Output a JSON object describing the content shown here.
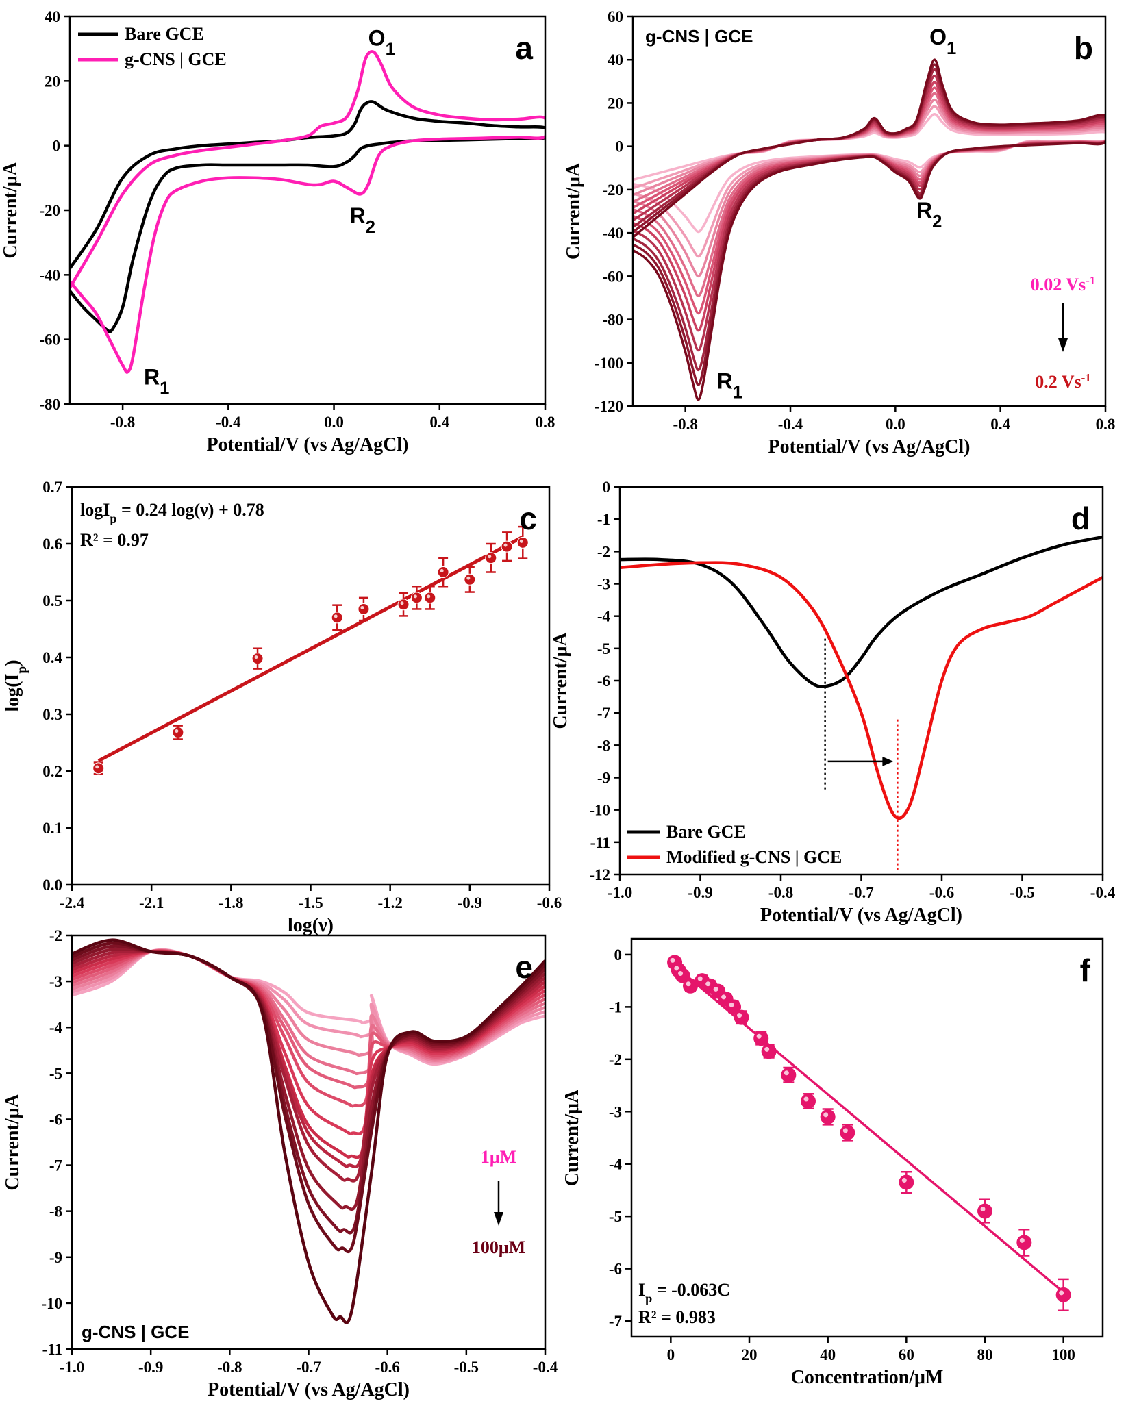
{
  "colors": {
    "black": "#000000",
    "magenta": "#ff1fb4",
    "red": "#ee1111",
    "darkred": "#c8151b",
    "pink": "#e5156b",
    "wine": "#6b0015",
    "lightpink": "#f5a9c4"
  },
  "chart_data": [
    {
      "id": "a",
      "type": "line",
      "letter": "a",
      "xlabel": "Potential/V  (vs Ag/AgCl)",
      "ylabel": "Current/μA",
      "xlim": [
        -1.0,
        0.8
      ],
      "ylim": [
        -80,
        40
      ],
      "xticks": [
        -0.8,
        -0.4,
        0.0,
        0.4,
        0.8
      ],
      "xtick_labels": [
        "-0.8",
        "-0.4",
        "0.0",
        "0.4",
        "0.8"
      ],
      "yticks": [
        -80,
        -60,
        -40,
        -20,
        0,
        20,
        40
      ],
      "ytick_labels": [
        "-80",
        "-60",
        "-40",
        "-20",
        "0",
        "20",
        "40"
      ],
      "legend": [
        "Bare GCE",
        "g-CNS | GCE"
      ],
      "annotations": [
        {
          "text": "O",
          "sub": "1",
          "x": 0.13,
          "y": 31
        },
        {
          "text": "R",
          "sub": "2",
          "x": 0.06,
          "y": -24
        },
        {
          "text": "R",
          "sub": "1",
          "x": -0.72,
          "y": -74
        }
      ],
      "series": [
        {
          "name": "Bare GCE",
          "color": "#000000",
          "x": [
            -1.0,
            -0.95,
            -0.9,
            -0.86,
            -0.84,
            -0.8,
            -0.76,
            -0.7,
            -0.65,
            -0.6,
            -0.5,
            -0.4,
            -0.3,
            -0.2,
            -0.1,
            0.0,
            0.05,
            0.08,
            0.1,
            0.13,
            0.17,
            0.22,
            0.3,
            0.4,
            0.5,
            0.6,
            0.7,
            0.8,
            0.8,
            0.7,
            0.6,
            0.5,
            0.4,
            0.3,
            0.2,
            0.15,
            0.12,
            0.1,
            0.08,
            0.05,
            0.0,
            -0.1,
            -0.2,
            -0.3,
            -0.4,
            -0.5,
            -0.6,
            -0.7,
            -0.8,
            -0.9,
            -1.0
          ],
          "y": [
            -45,
            -50,
            -54,
            -57,
            -57,
            -50,
            -35,
            -18,
            -10,
            -7,
            -6,
            -6,
            -6,
            -6,
            -6,
            -6.5,
            -5,
            -3,
            -1,
            0,
            0.5,
            1,
            1.5,
            1.6,
            1.8,
            2,
            2.2,
            2.5,
            5.5,
            5.8,
            6.2,
            7,
            7.5,
            8.5,
            11,
            13.5,
            13,
            11,
            7,
            4,
            3,
            2.5,
            1.5,
            1,
            0.5,
            0,
            -1,
            -3,
            -10,
            -26,
            -38
          ]
        },
        {
          "name": "g-CNS | GCE",
          "color": "#ff1fb4",
          "x": [
            -1.0,
            -0.95,
            -0.9,
            -0.85,
            -0.8,
            -0.78,
            -0.76,
            -0.72,
            -0.68,
            -0.64,
            -0.6,
            -0.5,
            -0.4,
            -0.3,
            -0.2,
            -0.1,
            -0.05,
            0.0,
            0.05,
            0.1,
            0.13,
            0.17,
            0.22,
            0.3,
            0.4,
            0.5,
            0.6,
            0.7,
            0.8,
            0.8,
            0.7,
            0.6,
            0.5,
            0.4,
            0.3,
            0.22,
            0.18,
            0.15,
            0.12,
            0.09,
            0.05,
            0.0,
            -0.05,
            -0.1,
            -0.2,
            -0.3,
            -0.4,
            -0.5,
            -0.6,
            -0.7,
            -0.8,
            -0.9,
            -1.0
          ],
          "y": [
            -42,
            -47,
            -52,
            -60,
            -68,
            -70,
            -65,
            -45,
            -28,
            -18,
            -14,
            -11,
            -10,
            -10,
            -10.5,
            -12,
            -12,
            -11,
            -13,
            -15,
            -12,
            -3,
            0,
            1.5,
            2,
            2.2,
            2.4,
            2.6,
            2.8,
            8.5,
            8.2,
            8,
            8.5,
            9.5,
            12,
            18,
            25,
            29,
            27,
            17,
            9,
            7,
            6,
            3,
            1.5,
            0.5,
            -0.5,
            -1.5,
            -3,
            -6,
            -15,
            -30,
            -44
          ]
        }
      ]
    },
    {
      "id": "b",
      "type": "line",
      "letter": "b",
      "xlabel": "Potential/V  (vs Ag/AgCl)",
      "ylabel": "Current/μA",
      "xlim": [
        -1.0,
        0.8
      ],
      "ylim": [
        -120,
        60
      ],
      "xticks": [
        -0.8,
        -0.4,
        0.0,
        0.4,
        0.8
      ],
      "xtick_labels": [
        "-0.8",
        "-0.4",
        "0.0",
        "0.4",
        "0.8"
      ],
      "yticks": [
        -120,
        -100,
        -80,
        -60,
        -40,
        -20,
        0,
        20,
        40,
        60
      ],
      "ytick_labels": [
        "-120",
        "-100",
        "-80",
        "-60",
        "-40",
        "-20",
        "0",
        "20",
        "40",
        "60"
      ],
      "label": "g-CNS | GCE",
      "rate_top": "0.02 Vs",
      "rate_bottom": "0.2 Vs",
      "rate_sup": "-1",
      "annotations": [
        {
          "text": "O",
          "sub": "1",
          "x": 0.13,
          "y": 47
        },
        {
          "text": "R",
          "sub": "2",
          "x": 0.08,
          "y": -33
        },
        {
          "text": "R",
          "sub": "1",
          "x": -0.68,
          "y": -112
        }
      ],
      "scan_scales": [
        0.32,
        0.42,
        0.5,
        0.58,
        0.65,
        0.72,
        0.8,
        0.88,
        0.94,
        1.0
      ],
      "series_template": {
        "x": [
          -1.0,
          -0.95,
          -0.9,
          -0.85,
          -0.8,
          -0.77,
          -0.75,
          -0.73,
          -0.7,
          -0.66,
          -0.62,
          -0.55,
          -0.45,
          -0.3,
          -0.2,
          -0.12,
          -0.08,
          -0.04,
          0.0,
          0.05,
          0.09,
          0.11,
          0.14,
          0.2,
          0.3,
          0.4,
          0.5,
          0.6,
          0.7,
          0.8,
          0.8,
          0.7,
          0.6,
          0.5,
          0.4,
          0.3,
          0.22,
          0.18,
          0.15,
          0.12,
          0.08,
          0.04,
          0.0,
          -0.04,
          -0.08,
          -0.12,
          -0.2,
          -0.3,
          -0.4,
          -0.5,
          -0.6,
          -0.7,
          -0.8,
          -0.9,
          -1.0
        ],
        "y": [
          -48,
          -52,
          -60,
          -75,
          -95,
          -110,
          -117,
          -108,
          -85,
          -55,
          -35,
          -20,
          -12,
          -8,
          -6,
          -5,
          -5,
          -8,
          -12,
          -16,
          -24,
          -20,
          -10,
          -3,
          -1,
          0,
          0.5,
          1,
          1.5,
          2,
          14,
          12,
          11,
          10.5,
          10,
          11,
          16,
          28,
          40,
          30,
          12,
          8,
          6,
          7,
          13,
          8,
          4,
          3,
          1,
          -1,
          -4,
          -12,
          -22,
          -32,
          -42
        ]
      }
    },
    {
      "id": "c",
      "type": "scatter",
      "letter": "c",
      "xlabel": "log(ν)",
      "ylabel": "log(I",
      "ylabel_sub": "p",
      "xlim": [
        -2.4,
        -0.6
      ],
      "ylim": [
        0.0,
        0.7
      ],
      "xticks": [
        -2.4,
        -2.1,
        -1.8,
        -1.5,
        -1.2,
        -0.9,
        -0.6
      ],
      "xtick_labels": [
        "-2.4",
        "-2.1",
        "-1.8",
        "-1.5",
        "-1.2",
        "-0.9",
        "-0.6"
      ],
      "yticks": [
        0.0,
        0.1,
        0.2,
        0.3,
        0.4,
        0.5,
        0.6,
        0.7
      ],
      "ytick_labels": [
        "0.0",
        "0.1",
        "0.2",
        "0.3",
        "0.4",
        "0.5",
        "0.6",
        "0.7"
      ],
      "equation_a": "logI",
      "equation_sub": "p",
      "equation_b": " = 0.24 log(ν) + 0.78",
      "r2": "R² = 0.97",
      "x": [
        -2.3,
        -2.0,
        -1.7,
        -1.4,
        -1.3,
        -1.15,
        -1.1,
        -1.05,
        -1.0,
        -0.9,
        -0.82,
        -0.76,
        -0.7
      ],
      "y": [
        0.205,
        0.268,
        0.398,
        0.47,
        0.485,
        0.493,
        0.505,
        0.505,
        0.55,
        0.537,
        0.575,
        0.595,
        0.602
      ],
      "err": [
        0.01,
        0.012,
        0.018,
        0.022,
        0.02,
        0.02,
        0.02,
        0.02,
        0.025,
        0.022,
        0.025,
        0.025,
        0.028
      ],
      "fit": {
        "x": [
          -2.3,
          -0.7
        ],
        "y": [
          0.218,
          0.612
        ]
      }
    },
    {
      "id": "d",
      "type": "line",
      "letter": "d",
      "xlabel": "Potential/V  (vs Ag/AgCl)",
      "ylabel": "Current/μA",
      "xlim": [
        -1.0,
        -0.4
      ],
      "ylim": [
        -12,
        0
      ],
      "xticks": [
        -1.0,
        -0.9,
        -0.8,
        -0.7,
        -0.6,
        -0.5,
        -0.4
      ],
      "xtick_labels": [
        "-1.0",
        "-0.9",
        "-0.8",
        "-0.7",
        "-0.6",
        "-0.5",
        "-0.4"
      ],
      "yticks": [
        -12,
        -11,
        -10,
        -9,
        -8,
        -7,
        -6,
        -5,
        -4,
        -3,
        -2,
        -1,
        0
      ],
      "ytick_labels": [
        "-12",
        "-11",
        "-10",
        "-9",
        "-8",
        "-7",
        "-6",
        "-5",
        "-4",
        "-3",
        "-2",
        "-1",
        "0"
      ],
      "legend": [
        "Bare GCE",
        "Modified g-CNS | GCE"
      ],
      "series": [
        {
          "name": "Bare GCE",
          "color": "#000000",
          "x": [
            -1.0,
            -0.95,
            -0.9,
            -0.86,
            -0.82,
            -0.79,
            -0.76,
            -0.74,
            -0.72,
            -0.7,
            -0.68,
            -0.65,
            -0.6,
            -0.55,
            -0.5,
            -0.45,
            -0.4
          ],
          "y": [
            -2.25,
            -2.25,
            -2.4,
            -3.0,
            -4.3,
            -5.4,
            -6.1,
            -6.15,
            -5.9,
            -5.3,
            -4.6,
            -3.9,
            -3.2,
            -2.7,
            -2.2,
            -1.8,
            -1.55
          ]
        },
        {
          "name": "Modified g-CNS | GCE",
          "color": "#ee1111",
          "x": [
            -1.0,
            -0.95,
            -0.9,
            -0.85,
            -0.8,
            -0.76,
            -0.73,
            -0.7,
            -0.68,
            -0.665,
            -0.655,
            -0.645,
            -0.635,
            -0.62,
            -0.6,
            -0.58,
            -0.55,
            -0.52,
            -0.49,
            -0.46,
            -0.43,
            -0.4
          ],
          "y": [
            -2.5,
            -2.4,
            -2.35,
            -2.4,
            -2.8,
            -3.8,
            -5.2,
            -7.0,
            -8.8,
            -9.9,
            -10.25,
            -10.1,
            -9.5,
            -8.0,
            -6.0,
            -4.9,
            -4.4,
            -4.2,
            -4.0,
            -3.6,
            -3.2,
            -2.8
          ]
        }
      ],
      "markers": [
        {
          "x": -0.745
        },
        {
          "x": -0.655
        }
      ]
    },
    {
      "id": "e",
      "type": "line",
      "letter": "e",
      "xlabel": "Potential/V  (vs Ag/AgCl)",
      "ylabel": "Current/μA",
      "xlim": [
        -1.0,
        -0.4
      ],
      "ylim": [
        -11,
        -2
      ],
      "xticks": [
        -1.0,
        -0.9,
        -0.8,
        -0.7,
        -0.6,
        -0.5,
        -0.4
      ],
      "xtick_labels": [
        "-1.0",
        "-0.9",
        "-0.8",
        "-0.7",
        "-0.6",
        "-0.5",
        "-0.4"
      ],
      "yticks": [
        -11,
        -10,
        -9,
        -8,
        -7,
        -6,
        -5,
        -4,
        -3,
        -2
      ],
      "ytick_labels": [
        "-11",
        "-10",
        "-9",
        "-8",
        "-7",
        "-6",
        "-5",
        "-4",
        "-3",
        "-2"
      ],
      "label": "g-CNS | GCE",
      "conc_top": "1μM",
      "conc_bottom": "100μM",
      "peak_depths": [
        -3.9,
        -4.2,
        -4.6,
        -5.0,
        -5.3,
        -5.7,
        -6.3,
        -6.8,
        -7.0,
        -7.3,
        -7.9,
        -8.4,
        -8.8,
        -10.3
      ]
    },
    {
      "id": "f",
      "type": "scatter",
      "letter": "f",
      "xlabel": "Concentration/μM",
      "ylabel": "Current/μA",
      "xlim": [
        -10,
        110
      ],
      "ylim": [
        -7.3,
        0.3
      ],
      "xticks": [
        0,
        20,
        40,
        60,
        80,
        100
      ],
      "xtick_labels": [
        "0",
        "20",
        "40",
        "60",
        "80",
        "100"
      ],
      "yticks": [
        -7,
        -6,
        -5,
        -4,
        -3,
        -2,
        -1,
        0
      ],
      "ytick_labels": [
        "-7",
        "-6",
        "-5",
        "-4",
        "-3",
        "-2",
        "-1",
        "0"
      ],
      "equation_a": "I",
      "equation_sub": "p",
      "equation_b": " = -0.063C",
      "r2": "R² = 0.983",
      "x": [
        1,
        2,
        3,
        5,
        8,
        10,
        12,
        14,
        16,
        18,
        23,
        25,
        30,
        35,
        40,
        45,
        60,
        80,
        90,
        100
      ],
      "y": [
        -0.15,
        -0.3,
        -0.4,
        -0.6,
        -0.5,
        -0.6,
        -0.7,
        -0.85,
        -1.0,
        -1.2,
        -1.6,
        -1.85,
        -2.3,
        -2.8,
        -3.1,
        -3.4,
        -4.35,
        -4.9,
        -5.5,
        -6.5
      ],
      "err": [
        0.08,
        0.08,
        0.08,
        0.1,
        0.1,
        0.1,
        0.1,
        0.1,
        0.1,
        0.12,
        0.12,
        0.12,
        0.14,
        0.14,
        0.15,
        0.15,
        0.2,
        0.22,
        0.25,
        0.3
      ],
      "fit": {
        "x": [
          0,
          100
        ],
        "y": [
          -0.15,
          -6.45
        ]
      }
    }
  ]
}
